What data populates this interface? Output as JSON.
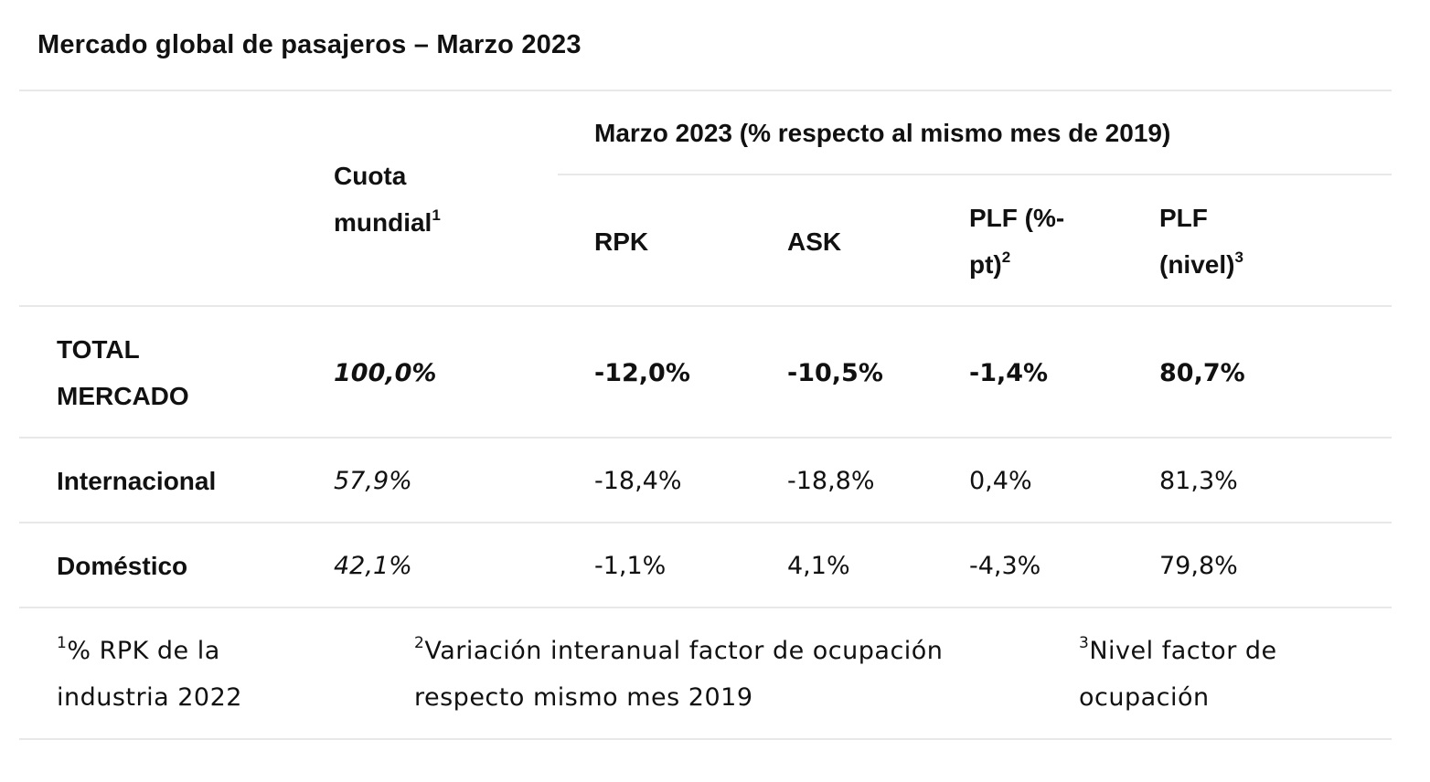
{
  "title": "Mercado global de pasajeros – Marzo 2023",
  "header": {
    "group": "Marzo 2023 (% respecto al mismo mes de 2019)",
    "share_l1": "Cuota",
    "share_l2": "mundial",
    "share_sup": "1",
    "rpk": "RPK",
    "ask": "ASK",
    "plf_pt_l1": "PLF (%-",
    "plf_pt_l2": "pt)",
    "plf_pt_sup": "2",
    "plf_lvl_l1": "PLF",
    "plf_lvl_l2": "(nivel)",
    "plf_lvl_sup": "3"
  },
  "rows": [
    {
      "label_l1": "TOTAL",
      "label_l2": "MERCADO",
      "share": "100,0%",
      "rpk": "-12,0%",
      "ask": "-10,5%",
      "plf_pt": "-1,4%",
      "plf_lvl": "80,7%"
    },
    {
      "label": "Internacional",
      "share": "57,9%",
      "rpk": "-18,4%",
      "ask": "-18,8%",
      "plf_pt": "0,4%",
      "plf_lvl": "81,3%"
    },
    {
      "label": "Doméstico",
      "share": "42,1%",
      "rpk": "-1,1%",
      "ask": "4,1%",
      "plf_pt": "-4,3%",
      "plf_lvl": "79,8%"
    }
  ],
  "footnotes": [
    {
      "sup": "1",
      "l1": "% RPK de la",
      "l2": "industria 2022"
    },
    {
      "sup": "2",
      "l1": "Variación interanual factor de ocupación",
      "l2": "respecto mismo mes 2019"
    },
    {
      "sup": "3",
      "l1": "Nivel factor de",
      "l2": "ocupación"
    }
  ]
}
